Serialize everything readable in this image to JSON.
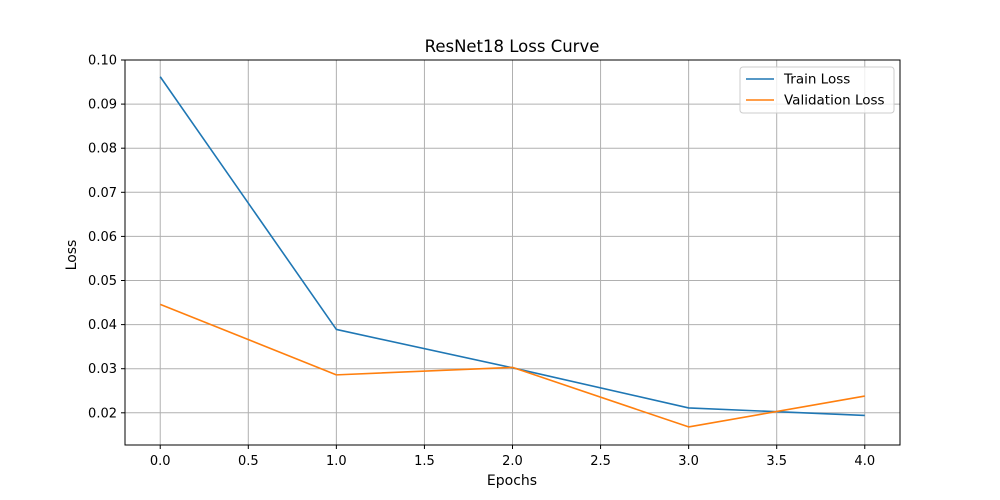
{
  "chart_data": {
    "type": "line",
    "title": "ResNet18 Loss Curve",
    "xlabel": "Epochs",
    "ylabel": "Loss",
    "xlim": [
      -0.2,
      4.2
    ],
    "ylim": [
      0.0127,
      0.1
    ],
    "x_ticks": [
      0.0,
      0.5,
      1.0,
      1.5,
      2.0,
      2.5,
      3.0,
      3.5,
      4.0
    ],
    "x_tick_labels": [
      "0.0",
      "0.5",
      "1.0",
      "1.5",
      "2.0",
      "2.5",
      "3.0",
      "3.5",
      "4.0"
    ],
    "y_ticks": [
      0.02,
      0.03,
      0.04,
      0.05,
      0.06,
      0.07,
      0.08,
      0.09,
      0.1
    ],
    "y_tick_labels": [
      "0.02",
      "0.03",
      "0.04",
      "0.05",
      "0.06",
      "0.07",
      "0.08",
      "0.09",
      "0.10"
    ],
    "grid": true,
    "legend_position": "top-right",
    "x": [
      0,
      1,
      2,
      3,
      4
    ],
    "series": [
      {
        "name": "Train Loss",
        "color": "#1f77b4",
        "values": [
          0.0962,
          0.0389,
          0.0302,
          0.0211,
          0.0194
        ]
      },
      {
        "name": "Validation Loss",
        "color": "#ff7f0e",
        "values": [
          0.0446,
          0.0286,
          0.0303,
          0.0168,
          0.0238
        ]
      }
    ]
  }
}
